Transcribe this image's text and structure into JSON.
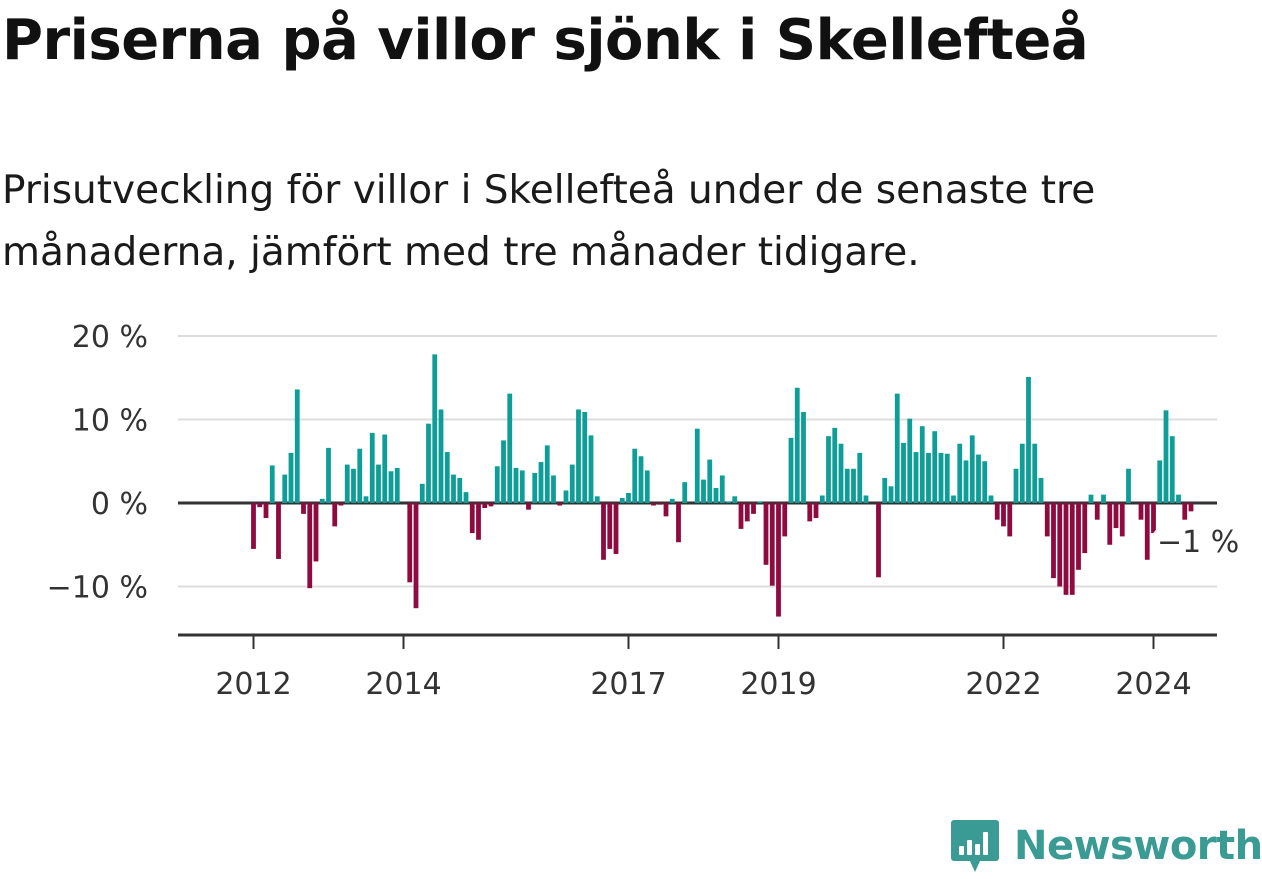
{
  "title": "Priserna på villor sjönk i Skellefteå",
  "subtitle": "Prisutveckling för villor i Skellefteå under de senaste tre månaderna, jämfört med tre månader tidigare.",
  "brand": {
    "name": "Newsworthy",
    "icon": "bar-chart-logo-icon",
    "color": "#3a9b94"
  },
  "colors": {
    "positive": "#0f9e97",
    "negative": "#8e0a3f",
    "axis": "#333333",
    "grid": "#dddddd"
  },
  "chart_data": {
    "type": "bar",
    "title": "Priserna på villor sjönk i Skellefteå",
    "xlabel": "",
    "ylabel": "",
    "ylim": [
      -16,
      20
    ],
    "grid": true,
    "legend": "none",
    "y_ticks": [
      20,
      10,
      0,
      -10
    ],
    "y_tick_labels": [
      "20 %",
      "10 %",
      "0 %",
      "−10 %"
    ],
    "x_ticks": [
      {
        "label": "2012",
        "index": 8
      },
      {
        "label": "2014",
        "index": 32
      },
      {
        "label": "2017",
        "index": 68
      },
      {
        "label": "2019",
        "index": 92
      },
      {
        "label": "2022",
        "index": 128
      },
      {
        "label": "2024",
        "index": 152
      }
    ],
    "start": "2011-01",
    "frequency": "monthly",
    "annotation": {
      "label": "−1 %",
      "index": 158
    },
    "values": [
      0.0,
      0.0,
      0.0,
      0.0,
      0.0,
      0.0,
      0.0,
      0.0,
      -5.5,
      -0.5,
      -1.8,
      4.5,
      -6.7,
      3.4,
      6.0,
      13.6,
      -1.3,
      -10.2,
      -7.0,
      0.5,
      6.6,
      -2.8,
      -0.3,
      4.6,
      4.1,
      6.5,
      0.8,
      8.4,
      4.6,
      8.2,
      3.8,
      4.2,
      0.0,
      -9.5,
      -12.6,
      2.3,
      9.5,
      17.8,
      11.2,
      6.1,
      3.4,
      3.0,
      1.3,
      -3.6,
      -4.4,
      -0.6,
      -0.4,
      4.4,
      7.5,
      13.1,
      4.2,
      3.9,
      -0.8,
      3.6,
      4.9,
      6.9,
      3.3,
      -0.3,
      1.5,
      4.6,
      11.2,
      10.9,
      8.1,
      0.8,
      -6.8,
      -5.5,
      -6.1,
      0.6,
      1.2,
      6.5,
      5.6,
      3.9,
      -0.3,
      -0.2,
      -1.6,
      0.5,
      -4.7,
      2.5,
      0.0,
      8.9,
      2.8,
      5.2,
      1.8,
      3.3,
      0.2,
      0.8,
      -3.1,
      -2.2,
      -1.3,
      0.2,
      -7.4,
      -9.9,
      -13.6,
      -4.0,
      7.8,
      13.8,
      10.9,
      -2.2,
      -1.8,
      0.9,
      8.0,
      9.0,
      7.1,
      4.1,
      4.1,
      6.0,
      0.9,
      0.0,
      -8.9,
      3.0,
      2.0,
      13.1,
      7.2,
      10.1,
      6.1,
      9.2,
      6.0,
      8.6,
      6.0,
      5.9,
      0.9,
      7.1,
      5.1,
      8.1,
      5.8,
      5.0,
      0.9,
      -2.0,
      -2.8,
      -4.0,
      4.1,
      7.1,
      15.1,
      7.1,
      3.0,
      -4.0,
      -9.0,
      -10.0,
      -11.0,
      -11.0,
      -8.0,
      -6.0,
      1.0,
      -2.0,
      1.0,
      -5.0,
      -3.0,
      -4.0,
      4.1,
      0.0,
      -2.0,
      -6.8,
      -3.6,
      5.1,
      11.1,
      8.0,
      1.0,
      -2.0,
      -1.0
    ]
  }
}
